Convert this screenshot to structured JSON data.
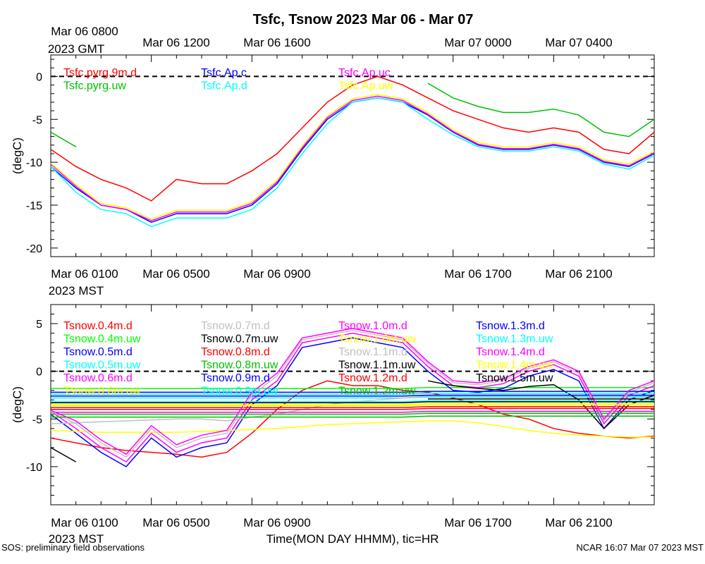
{
  "title": "Tsfc, Tsnow 2023 Mar 06 - Mar 07",
  "top_axis": {
    "gmt_first_line1": "Mar 06 0800",
    "gmt_first_line2": "2023 GMT",
    "gmt_ticks": [
      "Mar 06 1200",
      "Mar 06 1600",
      "Mar 07 0000",
      "Mar 07 0400"
    ]
  },
  "mid_axis": {
    "mst_first_line1": "Mar 06 0100",
    "mst_first_line2": "2023 MST",
    "mst_ticks": [
      "Mar 06 0500",
      "Mar 06 0900",
      "Mar 06 1700",
      "Mar 06 2100"
    ]
  },
  "bottom_axis": {
    "mst_first_line1": "Mar 06 0100",
    "mst_first_line2": "2023 MST",
    "mst_ticks": [
      "Mar 06 0500",
      "Mar 06 0900",
      "Mar 06 1700",
      "Mar 06 2100"
    ],
    "xlabel": "Time(MON DAY HHMM), tic=HR"
  },
  "footer": {
    "left": "SOS: preliminary field observations",
    "right": "NCAR 16:07 Mar 07 2023 MST"
  },
  "chart_data": [
    {
      "type": "line",
      "panel": "Tsfc",
      "ylabel": "(degC)",
      "ylim": [
        -21,
        2.5
      ],
      "yticks": [
        0,
        -5,
        -10,
        -15,
        -20
      ],
      "xlim_hours": [
        0,
        24
      ],
      "zero_line": "dashed",
      "x_hours": [
        0,
        1,
        2,
        3,
        4,
        5,
        6,
        7,
        8,
        9,
        10,
        11,
        12,
        13,
        14,
        15,
        16,
        17,
        18,
        19,
        20,
        21,
        22,
        23,
        24
      ],
      "series": [
        {
          "name": "Tsfc.pyrg.9m.d",
          "color": "#ff0000",
          "values": [
            -8.5,
            -10.5,
            -12,
            -13,
            -14.5,
            -12,
            -12.5,
            -12.5,
            -11,
            -9,
            -6,
            -3,
            -1,
            0,
            -1,
            -2.5,
            -4,
            -5,
            -6,
            -6.5,
            -6,
            -6.5,
            -8.5,
            -9,
            -6.5
          ]
        },
        {
          "name": "Tsfc.pyrg.uw",
          "color": "#00c000",
          "values": [
            -6.5,
            -8.2,
            null,
            null,
            null,
            null,
            null,
            null,
            null,
            null,
            null,
            null,
            null,
            null,
            null,
            -0.8,
            -2.5,
            -3.5,
            -4.2,
            -4.2,
            -3.8,
            -4.5,
            -6.5,
            -7,
            -5
          ]
        },
        {
          "name": "Tsfc.Ap.c",
          "color": "#0000ff",
          "values": [
            -10.5,
            -13,
            -15,
            -15.5,
            -17,
            -16,
            -16,
            -16,
            -15,
            -12.5,
            -8.5,
            -5,
            -3,
            -2.5,
            -3,
            -4.5,
            -6.5,
            -8,
            -8.5,
            -8.5,
            -8,
            -8.5,
            -10,
            -10.5,
            -9
          ]
        },
        {
          "name": "Tsfc.Ap.d",
          "color": "#00ffff",
          "values": [
            -10.5,
            -13.5,
            -15.5,
            -16,
            -17.5,
            -16.5,
            -16.5,
            -16.5,
            -15.5,
            -13,
            -9,
            -5.5,
            -3,
            -2.5,
            -3,
            -5,
            -6.8,
            -8.2,
            -8.7,
            -8.7,
            -8.2,
            -8.7,
            -10.2,
            -10.8,
            -9.2
          ]
        },
        {
          "name": "Tsfc.Ap.uc",
          "color": "#ff00ff",
          "values": [
            -10.2,
            -12.8,
            -15,
            -15.5,
            -16.8,
            -15.8,
            -15.8,
            -15.8,
            -14.8,
            -12.3,
            -8.3,
            -4.8,
            -2.8,
            -2.3,
            -2.8,
            -4.4,
            -6.4,
            -7.9,
            -8.4,
            -8.4,
            -7.9,
            -8.4,
            -9.9,
            -10.4,
            -8.9
          ]
        },
        {
          "name": "Tsfc.Ap.uw",
          "color": "#ffff00",
          "values": [
            -10.1,
            -12.6,
            -14.8,
            -15.3,
            -16.6,
            -15.6,
            -15.6,
            -15.6,
            -14.6,
            -12.1,
            -8.1,
            -4.6,
            -2.6,
            -2.1,
            -2.6,
            -4.2,
            -6.2,
            -7.7,
            -8.2,
            -8.2,
            -7.7,
            -8.2,
            -9.7,
            -10.2,
            -8.7
          ]
        }
      ]
    },
    {
      "type": "line",
      "panel": "Tsnow",
      "ylabel": "(degC)",
      "ylim": [
        -14,
        7
      ],
      "yticks": [
        5,
        0,
        -5,
        -10
      ],
      "xlim_hours": [
        0,
        24
      ],
      "zero_line": "dashed",
      "x_hours": [
        0,
        1,
        2,
        3,
        4,
        5,
        6,
        7,
        8,
        9,
        10,
        11,
        12,
        13,
        14,
        15,
        16,
        17,
        18,
        19,
        20,
        21,
        22,
        23,
        24
      ],
      "series": [
        {
          "name": "Tsnow.0.4m.d",
          "color": "#ff0000",
          "values": [
            -7,
            -7.5,
            -8,
            -8.3,
            -8.5,
            -8.7,
            -9,
            -8.5,
            -6.5,
            -4,
            -2,
            -1,
            -1.5,
            -1.5,
            -2,
            -2.2,
            -2.8,
            -3.5,
            -4.5,
            -5,
            -6,
            -6.5,
            -6.8,
            -7,
            -6.8
          ]
        },
        {
          "name": "Tsnow.0.4m.uw",
          "color": "#00ff00",
          "values": [
            -1.8,
            -1.8,
            -1.8,
            -1.8,
            -1.8,
            -1.8,
            -1.8,
            -1.8,
            -1.8,
            -1.8,
            -1.8,
            -1.8,
            -1.8,
            -1.8,
            -1.8,
            -1.7,
            -1.7,
            -1.7,
            -1.7,
            -1.7,
            -1.7,
            -1.7,
            -1.7,
            -1.7,
            -1.7
          ]
        },
        {
          "name": "Tsnow.0.5m.d",
          "color": "#0000ff",
          "values": [
            -4.5,
            -6.5,
            -8.5,
            -10,
            -7,
            -9,
            -8,
            -7.5,
            -3.5,
            -1.5,
            2.5,
            3,
            3.5,
            3,
            2.5,
            0,
            -2,
            -2.2,
            -1.8,
            -0.5,
            0.2,
            -1,
            -6,
            -3,
            -2
          ]
        },
        {
          "name": "Tsnow.0.5m.uw",
          "color": "#00ffff",
          "values": [
            -2.8,
            -2.8,
            -2.8,
            -2.8,
            -2.8,
            -2.8,
            -2.8,
            -2.8,
            -2.8,
            -2.8,
            -2.8,
            -2.8,
            -2.8,
            -2.8,
            -2.8,
            -2.7,
            -2.7,
            -2.7,
            -2.7,
            -2.7,
            -2.7,
            -2.7,
            -2.7,
            -2.7,
            -2.7
          ]
        },
        {
          "name": "Tsnow.0.6m.d",
          "color": "#ff00ff",
          "values": [
            -4.2,
            -6,
            -8,
            -9.5,
            -6.5,
            -8.5,
            -7.5,
            -7,
            -3,
            -1,
            3,
            3.5,
            4,
            3.5,
            3,
            0.5,
            -1.5,
            -1.7,
            -1.3,
            0,
            0.7,
            -0.5,
            -5.5,
            -2.5,
            -1.5
          ]
        },
        {
          "name": "Tsnow.0.6m.uw",
          "color": "#ffff00",
          "values": [
            -6.2,
            -6.3,
            -6.4,
            -6.4,
            -6.4,
            -6.4,
            -6.3,
            -6.2,
            -6.1,
            -6,
            -5.8,
            -5.6,
            -5.5,
            -5.4,
            -5.3,
            -5.2,
            -5.2,
            -5.4,
            -5.8,
            -6.2,
            -6.5,
            -6.7,
            -6.8,
            -6.9,
            -6.9
          ]
        },
        {
          "name": "Tsnow.0.7m.d",
          "color": "#c0c0c0",
          "values": [
            -5.5,
            -5.4,
            -5.3,
            -5.2,
            -5.1,
            -5,
            -5,
            -5.2,
            -4.8,
            -4.5,
            -4,
            -3.5,
            -3.2,
            -3,
            -2.8,
            -2.6,
            -2.6,
            -2.6,
            -2.6,
            -2.6,
            -2.6,
            -2.6,
            -2.6,
            -2.6,
            -2.6
          ]
        },
        {
          "name": "Tsnow.0.7m.uw",
          "color": "#000000",
          "values": [
            -8,
            -9.5,
            null,
            null,
            null,
            null,
            null,
            null,
            null,
            null,
            null,
            null,
            null,
            null,
            null,
            -1,
            -1.5,
            -1.8,
            -2,
            -1.6,
            -1.4,
            -3,
            -6,
            -3.5,
            -2.5
          ]
        },
        {
          "name": "Tsnow.0.8m.d",
          "color": "#ff0000",
          "values": [
            -3.8,
            -3.8,
            -3.8,
            -3.8,
            -3.8,
            -3.8,
            -3.8,
            -3.8,
            -3.8,
            -3.8,
            -3.8,
            -3.8,
            -3.8,
            -3.8,
            -3.8,
            -3.7,
            -3.7,
            -3.7,
            -3.7,
            -3.7,
            -3.7,
            -3.7,
            -3.7,
            -3.7,
            -3.7
          ]
        },
        {
          "name": "Tsnow.0.8m.uw",
          "color": "#00c000",
          "values": [
            -4.5,
            -4.5,
            -4.5,
            -4.5,
            -4.5,
            -4.5,
            -4.5,
            -4.5,
            -4.5,
            -4.5,
            -4.5,
            -4.5,
            -4.5,
            -4.5,
            -4.5,
            -4.4,
            -4.4,
            -4.4,
            -4.4,
            -4.4,
            -4.4,
            -4.4,
            -4.4,
            -4.4,
            -4.4
          ]
        },
        {
          "name": "Tsnow.0.9m.d",
          "color": "#0000ff",
          "values": [
            -2.6,
            -2.6,
            -2.6,
            -2.6,
            -2.6,
            -2.6,
            -2.6,
            -2.6,
            -2.6,
            -2.6,
            -2.6,
            -2.6,
            -2.6,
            -2.6,
            -2.6,
            -2.5,
            -2.5,
            -2.5,
            -2.5,
            -2.5,
            -2.5,
            -2.5,
            -2.5,
            -2.5,
            -2.5
          ]
        },
        {
          "name": "Tsnow.0.9m.uw",
          "color": "#00ffff",
          "values": [
            -3.2,
            -3.2,
            -3.2,
            -3.2,
            -3.2,
            -3.2,
            -3.2,
            -3.2,
            -3.2,
            -3.2,
            -3.2,
            -3.2,
            -3.2,
            -3.2,
            -3.2,
            -3.1,
            -3.1,
            -3.1,
            -3.1,
            -3.1,
            -3.1,
            -3.1,
            -3.1,
            -3.1,
            -3.1
          ]
        },
        {
          "name": "Tsnow.1.0m.d",
          "color": "#ff00ff",
          "values": [
            -4.3,
            -4.3,
            -4.3,
            -4.3,
            -4.3,
            -4.3,
            -4.3,
            -4.3,
            -4.3,
            -4.3,
            -4.3,
            -4.3,
            -4.3,
            -4.3,
            -4.3,
            -4.2,
            -4.2,
            -4.2,
            -4.2,
            -4.2,
            -4.2,
            -4.2,
            -4.2,
            -4.2,
            -4.2
          ]
        },
        {
          "name": "Tsnow.1.0m.uw",
          "color": "#ffff00",
          "values": [
            -3.5,
            -3.5,
            -3.5,
            -3.5,
            -3.5,
            -3.5,
            -3.5,
            -3.5,
            -3.5,
            -3.5,
            -3.5,
            -3.5,
            -3.5,
            -3.5,
            -3.5,
            -3.4,
            -3.4,
            -3.4,
            -3.4,
            -3.4,
            -3.4,
            -3.4,
            -3.4,
            -3.4,
            -3.4
          ]
        },
        {
          "name": "Tsnow.1.1m.d",
          "color": "#c0c0c0",
          "values": [
            -4.2,
            -5.5,
            -7.5,
            -9,
            -6,
            -8,
            -7,
            -6.5,
            -2.5,
            -0.5,
            3.3,
            3.8,
            4.3,
            3.8,
            3.3,
            0.8,
            -1.2,
            -1.4,
            -1,
            0.3,
            1,
            -0.2,
            -5.2,
            -2.2,
            -1.2
          ]
        },
        {
          "name": "Tsnow.1.1m.uw",
          "color": "#000000",
          "values": [
            -3.3,
            -3.3,
            -3.3,
            -3.3,
            -3.3,
            -3.3,
            -3.3,
            -3.3,
            -3.3,
            -3.3,
            -3.3,
            -3.3,
            -3.3,
            -3.3,
            -3.3,
            -3.2,
            -3.2,
            -3.2,
            -3.2,
            -3.2,
            -3.2,
            -3.2,
            -3.2,
            -3.2,
            -3.2
          ]
        },
        {
          "name": "Tsnow.1.2m.d",
          "color": "#ff0000",
          "values": [
            -4,
            -4,
            -4,
            -4,
            -4,
            -4,
            -4,
            -4,
            -4,
            -4,
            -4,
            -4,
            -4,
            -4,
            -4,
            -3.9,
            -3.9,
            -3.9,
            -3.9,
            -3.9,
            -3.9,
            -3.9,
            -3.9,
            -3.9,
            -3.9
          ]
        },
        {
          "name": "Tsnow.1.2m.uw",
          "color": "#00c000",
          "values": [
            -4.8,
            -4.8,
            -4.8,
            -4.8,
            -4.8,
            -4.8,
            -4.8,
            -4.8,
            -4.8,
            -4.8,
            -4.8,
            -4.8,
            -4.8,
            -4.8,
            -4.8,
            -4.7,
            -4.7,
            -4.7,
            -4.7,
            -4.7,
            -4.7,
            -4.7,
            -4.7,
            -4.7,
            -4.7
          ]
        },
        {
          "name": "Tsnow.1.3m.d",
          "color": "#0000ff",
          "values": [
            -2.2,
            -2.2,
            -2.2,
            -2.2,
            -2.2,
            -2.2,
            -2.2,
            -2.2,
            -2.2,
            -2.2,
            -2.2,
            -2.2,
            -2.2,
            -2.2,
            -2.2,
            -2.1,
            -2.1,
            -2.1,
            -2.1,
            -2.1,
            -2.1,
            -2.1,
            -2.1,
            -2.1,
            -2.1
          ]
        },
        {
          "name": "Tsnow.1.3m.uw",
          "color": "#00ffff",
          "values": [
            -2.4,
            -2.4,
            -2.4,
            -2.4,
            -2.4,
            -2.4,
            -2.4,
            -2.4,
            -2.4,
            -2.4,
            -2.4,
            -2.4,
            -2.4,
            -2.4,
            -2.4,
            -2.3,
            -2.3,
            -2.3,
            -2.3,
            -2.3,
            -2.3,
            -2.3,
            -2.3,
            -2.3,
            -2.3
          ]
        },
        {
          "name": "Tsnow.1.4m.d",
          "color": "#ff00ff",
          "values": [
            -4.1,
            -5.2,
            -7.2,
            -8.7,
            -5.7,
            -7.7,
            -6.7,
            -6.2,
            -2.2,
            -0.2,
            3.5,
            4,
            4.5,
            4,
            3.5,
            1,
            -1,
            -1.2,
            -0.8,
            0.5,
            1.2,
            0,
            -5,
            -2,
            -1
          ]
        },
        {
          "name": "Tsnow.1.4m.uw",
          "color": "#ffff00",
          "values": [
            -3.6,
            -3.6,
            -3.6,
            -3.6,
            -3.6,
            -3.6,
            -3.6,
            -3.6,
            -3.6,
            -3.6,
            -3.6,
            -3.6,
            -3.6,
            -3.6,
            -3.6,
            -3.5,
            -3.5,
            -3.5,
            -3.5,
            -3.5,
            -3.5,
            -3.5,
            -3.5,
            -3.5,
            -3.5
          ]
        },
        {
          "name": "Tsnow.1.5m.uw",
          "color": "#000000",
          "values": [
            null,
            null,
            null,
            null,
            null,
            null,
            null,
            null,
            null,
            null,
            null,
            null,
            null,
            null,
            null,
            -2.9,
            -2.9,
            -2.9,
            -2.9,
            -2.9,
            -2.9,
            -2.9,
            -2.9,
            -2.9,
            -2.9
          ]
        }
      ]
    }
  ]
}
